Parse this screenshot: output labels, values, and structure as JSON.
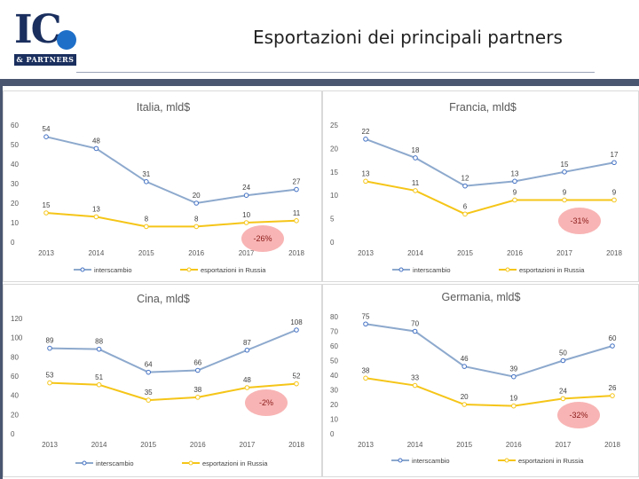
{
  "header": {
    "logo_text": "IC",
    "logo_sub": "& PARTNERS",
    "title": "Esportazioni dei principali partners"
  },
  "colors": {
    "interscambio": "#8da9cd",
    "russia": "#f5c518",
    "badge": "#f8b4b4",
    "band": "#4a5670"
  },
  "chart_data": [
    {
      "type": "line",
      "title": "Italia, mld$",
      "categories": [
        "2013",
        "2014",
        "2015",
        "2016",
        "2017",
        "2018"
      ],
      "yticks": [
        0,
        10,
        20,
        30,
        40,
        50,
        60
      ],
      "ylim": [
        0,
        60
      ],
      "series": [
        {
          "name": "interscambio",
          "values": [
            54,
            48,
            31,
            20,
            24,
            27
          ]
        },
        {
          "name": "esportazioni in Russia",
          "values": [
            15,
            13,
            8,
            8,
            10,
            11
          ]
        }
      ],
      "labels": [
        [
          "54",
          "48",
          "31",
          "20",
          "24",
          "27"
        ],
        [
          "15",
          "13",
          "8",
          "8",
          "10",
          "11"
        ]
      ],
      "change": "-26%"
    },
    {
      "type": "line",
      "title": "Francia, mld$",
      "categories": [
        "2013",
        "2014",
        "2015",
        "2016",
        "2017",
        "2018"
      ],
      "yticks": [
        0,
        5,
        10,
        15,
        20,
        25
      ],
      "ylim": [
        0,
        25
      ],
      "series": [
        {
          "name": "interscambio",
          "values": [
            22,
            18,
            12,
            13,
            15,
            17
          ]
        },
        {
          "name": "esportazioni in Russia",
          "values": [
            13,
            11,
            6,
            9,
            9,
            9
          ]
        }
      ],
      "labels": [
        [
          "22",
          "18",
          "12",
          "13",
          "15",
          "17"
        ],
        [
          "13",
          "11",
          "6",
          "9",
          "9",
          "9"
        ]
      ],
      "change": "-31%"
    },
    {
      "type": "line",
      "title": "Cina, mld$",
      "categories": [
        "2013",
        "2014",
        "2015",
        "2016",
        "2017",
        "2018"
      ],
      "yticks": [
        0,
        20,
        40,
        60,
        80,
        100,
        120
      ],
      "ylim": [
        0,
        120
      ],
      "series": [
        {
          "name": "interscambio",
          "values": [
            89,
            88,
            64,
            66,
            87,
            108
          ]
        },
        {
          "name": "esportazioni in Russia",
          "values": [
            53,
            51,
            35,
            38,
            48,
            52
          ]
        }
      ],
      "labels": [
        [
          "89",
          "88",
          "64",
          "66",
          "87",
          "108"
        ],
        [
          "53",
          "51",
          "35",
          "38",
          "48",
          "52"
        ]
      ],
      "change": "-2%"
    },
    {
      "type": "line",
      "title": "Germania, mld$",
      "categories": [
        "2013",
        "2014",
        "2015",
        "2016",
        "2017",
        "2018"
      ],
      "yticks": [
        0,
        10,
        20,
        30,
        40,
        50,
        60,
        70,
        80
      ],
      "ylim": [
        0,
        80
      ],
      "series": [
        {
          "name": "interscambio",
          "values": [
            75,
            70,
            46,
            39,
            50,
            60
          ]
        },
        {
          "name": "esportazioni in Russia",
          "values": [
            38,
            33,
            20,
            19,
            24,
            26
          ]
        }
      ],
      "labels": [
        [
          "75",
          "70",
          "46",
          "39",
          "50",
          "60"
        ],
        [
          "38",
          "33",
          "20",
          "19",
          "24",
          "26"
        ]
      ],
      "change": "-32%"
    }
  ]
}
